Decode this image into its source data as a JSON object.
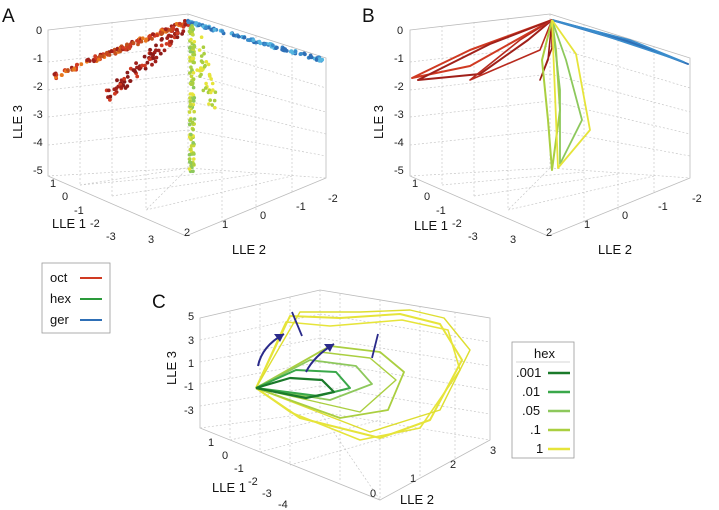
{
  "colors": {
    "oct": "#d03a22",
    "oct_dark": "#a0201a",
    "oct_orange": "#e8781e",
    "hex": "#2a9a3a",
    "ger": "#2e6fb6",
    "ger_light": "#56b6e0",
    "yellow": "#e6e43a",
    "lime": "#aacf40",
    "lgreen": "#8dc85c",
    "green": "#3aa84a",
    "dgreen": "#1a7a2a",
    "arrow": "#2a2a8a"
  },
  "chart_data": [
    {
      "id": "A",
      "type": "scatter3d",
      "panel_label": "A",
      "xlabel": "LLE 1",
      "ylabel": "LLE 2",
      "zlabel": "LLE 3",
      "x_ticks": [
        "1",
        "0",
        "-1",
        "-2",
        "-3"
      ],
      "y_ticks": [
        "3",
        "2",
        "1",
        "0",
        "-1",
        "-2"
      ],
      "z_ticks": [
        "0",
        "-1",
        "-2",
        "-3",
        "-4",
        "-5"
      ],
      "series": [
        {
          "name": "oct",
          "color": "oct",
          "path": [
            [
              0.5,
              0.5,
              0
            ],
            [
              0,
              0.6,
              -0.3
            ],
            [
              -0.8,
              0.8,
              -0.8
            ],
            [
              -1.6,
              0.9,
              -1.3
            ],
            [
              -2.4,
              1.0,
              -1.7
            ],
            [
              -3.0,
              1.1,
              -1.8
            ]
          ]
        },
        {
          "name": "hex",
          "color": "lime",
          "path": [
            [
              0.4,
              0.8,
              -0.1
            ],
            [
              0.2,
              1.3,
              -1.5
            ],
            [
              0.1,
              1.5,
              -3.0
            ],
            [
              0.05,
              1.6,
              -4.2
            ],
            [
              0.0,
              1.6,
              -5.0
            ]
          ]
        },
        {
          "name": "ger",
          "color": "ger",
          "path": [
            [
              0.5,
              0.5,
              0
            ],
            [
              0.8,
              -0.3,
              -0.2
            ],
            [
              1.1,
              -1.0,
              -0.5
            ],
            [
              1.3,
              -1.6,
              -0.8
            ],
            [
              1.4,
              -2.0,
              -0.9
            ]
          ]
        }
      ]
    },
    {
      "id": "B",
      "type": "line3d",
      "panel_label": "B",
      "xlabel": "LLE 1",
      "ylabel": "LLE 2",
      "zlabel": "LLE 3",
      "x_ticks": [
        "1",
        "0",
        "-1",
        "-2",
        "-3"
      ],
      "y_ticks": [
        "3",
        "2",
        "1",
        "0",
        "-1",
        "-2"
      ],
      "z_ticks": [
        "0",
        "-1",
        "-2",
        "-3",
        "-4",
        "-5"
      ]
    },
    {
      "id": "C",
      "type": "line3d",
      "panel_label": "C",
      "xlabel": "LLE 1",
      "ylabel": "LLE 2",
      "zlabel": "LLE 3",
      "x_ticks": [
        "1",
        "0",
        "-1",
        "-2",
        "-3",
        "-4"
      ],
      "y_ticks": [
        "0",
        "1",
        "2",
        "3"
      ],
      "z_ticks": [
        "5",
        "3",
        "1",
        "-1",
        "-3"
      ],
      "series": [
        {
          "name": ".001",
          "color": "dgreen"
        },
        {
          "name": ".01",
          "color": "green"
        },
        {
          "name": ".05",
          "color": "lgreen"
        },
        {
          "name": ".1",
          "color": "lime"
        },
        {
          "name": "1",
          "color": "yellow"
        }
      ]
    }
  ],
  "legend_left": {
    "items": [
      {
        "label": "oct",
        "color": "oct"
      },
      {
        "label": "hex",
        "color": "hex"
      },
      {
        "label": "ger",
        "color": "ger"
      }
    ]
  },
  "legend_right": {
    "title": "hex",
    "items": [
      {
        "label": ".001",
        "color": "dgreen"
      },
      {
        "label": ".01",
        "color": "green"
      },
      {
        "label": ".05",
        "color": "lgreen"
      },
      {
        "label": ".1",
        "color": "lime"
      },
      {
        "label": "1",
        "color": "yellow"
      }
    ]
  }
}
